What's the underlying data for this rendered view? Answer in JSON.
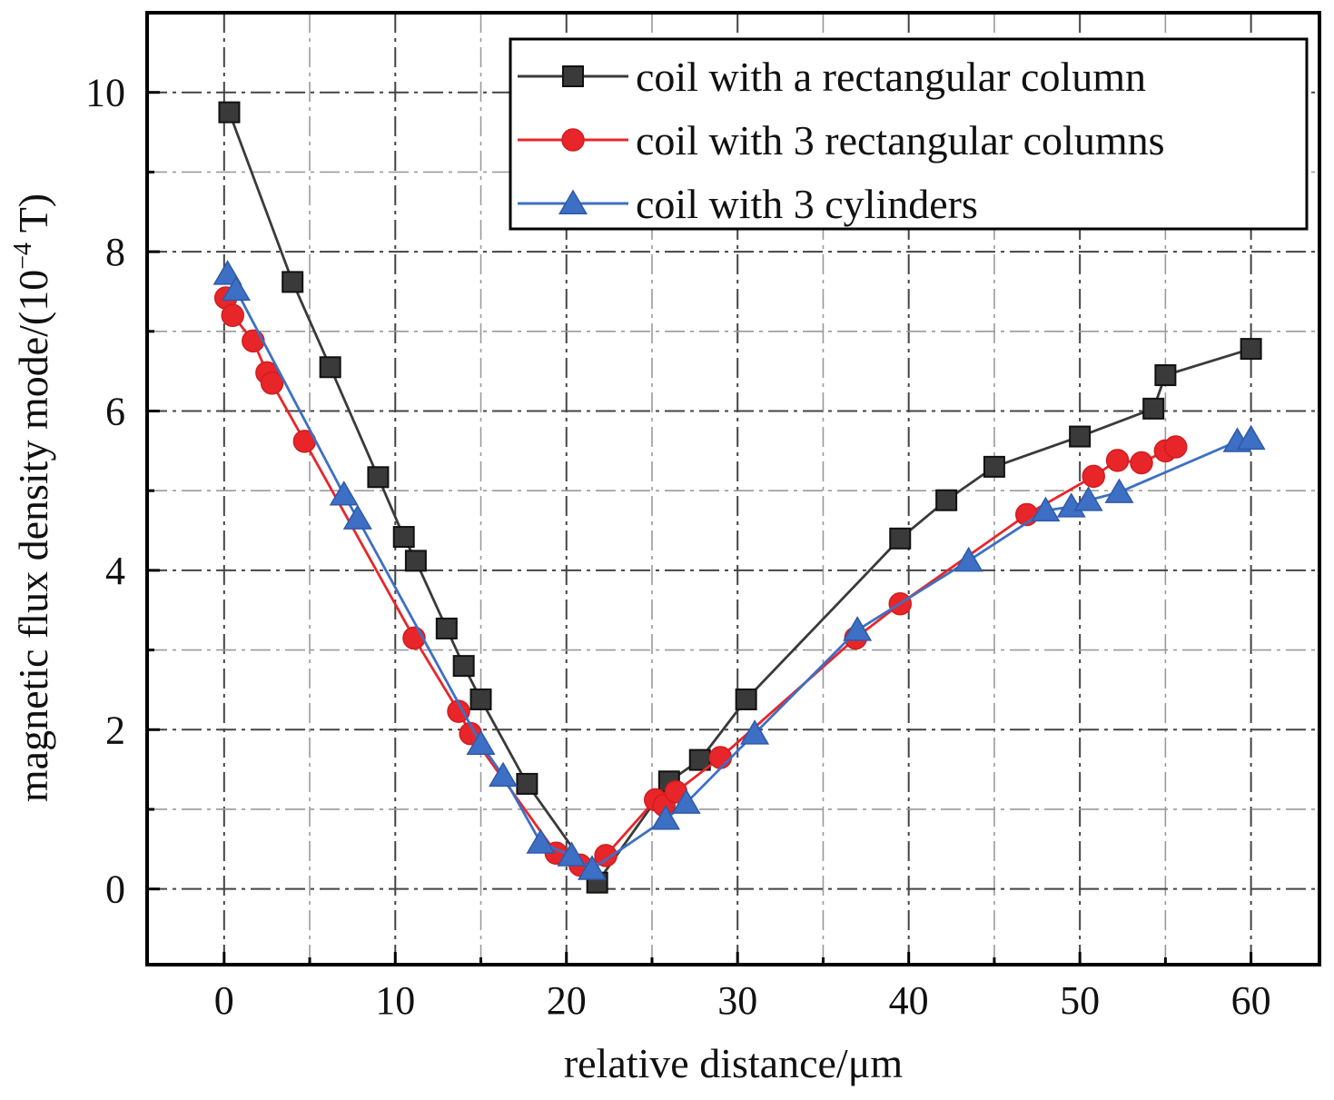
{
  "chart_data": {
    "type": "line",
    "title": "",
    "xlabel": "relative distance/μm",
    "ylabel_prefix": "magnetic flux density mode/(10",
    "ylabel_exp": "−4",
    "ylabel_suffix": " T)",
    "xlim": [
      -4.5,
      64
    ],
    "ylim": [
      -0.95,
      11
    ],
    "xticks": [
      0,
      10,
      20,
      30,
      40,
      50,
      60
    ],
    "yticks": [
      0,
      2,
      4,
      6,
      8,
      10
    ],
    "grid": true,
    "legend_position": "top-right",
    "series": [
      {
        "name": "coil with a rectangular column",
        "color": "#3a3a3a",
        "marker": "square",
        "x": [
          0.3,
          4,
          6.2,
          9,
          10.5,
          11.2,
          13,
          14,
          15,
          17.7,
          21.8,
          26,
          27.8,
          30.5,
          39.5,
          42.2,
          45,
          50,
          54.3,
          55,
          60
        ],
        "y": [
          9.75,
          7.62,
          6.55,
          5.17,
          4.42,
          4.12,
          3.27,
          2.8,
          2.38,
          1.32,
          0.08,
          1.35,
          1.62,
          2.38,
          4.4,
          4.88,
          5.3,
          5.68,
          6.03,
          6.45,
          6.78
        ]
      },
      {
        "name": "coil with 3 rectangular columns",
        "color": "#e8262a",
        "marker": "circle",
        "x": [
          0.1,
          0.5,
          1.7,
          2.5,
          2.8,
          4.7,
          11.1,
          13.7,
          14.4,
          19.4,
          20.8,
          22.3,
          25.2,
          25.7,
          26.4,
          29,
          36.9,
          39.5,
          46.9,
          50.8,
          52.2,
          53.6,
          55,
          55.6
        ],
        "y": [
          7.42,
          7.2,
          6.88,
          6.48,
          6.35,
          5.62,
          3.15,
          2.23,
          1.95,
          0.45,
          0.3,
          0.42,
          1.12,
          1.05,
          1.22,
          1.65,
          3.15,
          3.58,
          4.7,
          5.18,
          5.38,
          5.35,
          5.5,
          5.55
        ]
      },
      {
        "name": "coil with 3 cylinders",
        "color": "#3d6fc4",
        "marker": "triangle",
        "x": [
          0.2,
          0.7,
          7,
          7.8,
          15,
          16.3,
          18.5,
          20.3,
          21.5,
          25.8,
          27,
          31,
          37,
          43.5,
          48,
          49.5,
          50.5,
          52.3,
          59.2,
          60
        ],
        "y": [
          7.72,
          7.52,
          4.95,
          4.65,
          1.82,
          1.42,
          0.58,
          0.42,
          0.25,
          0.88,
          1.08,
          1.95,
          3.25,
          4.12,
          4.75,
          4.8,
          4.88,
          4.98,
          5.62,
          5.65
        ]
      }
    ]
  }
}
